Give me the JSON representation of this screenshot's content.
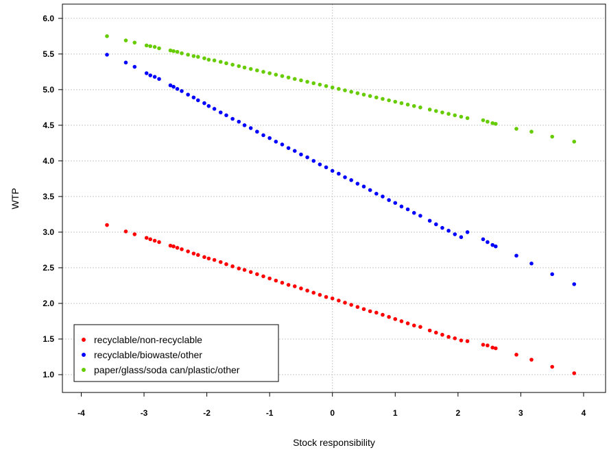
{
  "chart_data": {
    "type": "scatter",
    "xlabel": "Stock responsibility",
    "ylabel": "WTP",
    "xlim": [
      -4.3,
      4.35
    ],
    "ylim": [
      0.75,
      6.2
    ],
    "x_ticks": [
      -4,
      -3,
      -2,
      -1,
      0,
      1,
      2,
      3,
      4
    ],
    "x_tick_labels": [
      "-4",
      "-3",
      "-2",
      "-1",
      "0",
      "1",
      "2",
      "3",
      "4"
    ],
    "y_ticks": [
      1.0,
      1.5,
      2.0,
      2.5,
      3.0,
      3.5,
      4.0,
      4.5,
      5.0,
      5.5,
      6.0
    ],
    "y_tick_labels": [
      "1.0",
      "1.5",
      "2.0",
      "2.5",
      "3.0",
      "3.5",
      "4.0",
      "4.5",
      "5.0",
      "5.5",
      "6.0"
    ],
    "grid": true,
    "legend_position": "bottom-left",
    "x": [
      -3.59,
      -3.29,
      -3.15,
      -2.96,
      -2.9,
      -2.83,
      -2.76,
      -2.58,
      -2.53,
      -2.47,
      -2.4,
      -2.3,
      -2.21,
      -2.14,
      -2.04,
      -1.97,
      -1.88,
      -1.78,
      -1.69,
      -1.59,
      -1.49,
      -1.4,
      -1.3,
      -1.2,
      -1.1,
      -1.0,
      -0.9,
      -0.8,
      -0.7,
      -0.6,
      -0.5,
      -0.4,
      -0.3,
      -0.2,
      -0.1,
      0.0,
      0.1,
      0.2,
      0.3,
      0.4,
      0.5,
      0.6,
      0.7,
      0.8,
      0.9,
      1.0,
      1.1,
      1.2,
      1.3,
      1.4,
      1.55,
      1.65,
      1.75,
      1.85,
      1.95,
      2.05,
      2.15,
      2.4,
      2.47,
      2.55,
      2.6,
      2.93,
      3.17,
      3.5,
      3.85
    ],
    "series": [
      {
        "name": "recyclable/non-recyclable",
        "color": "#ff0000",
        "values": [
          3.1,
          3.01,
          2.97,
          2.92,
          2.9,
          2.88,
          2.86,
          2.81,
          2.8,
          2.78,
          2.76,
          2.73,
          2.7,
          2.68,
          2.65,
          2.63,
          2.61,
          2.58,
          2.55,
          2.52,
          2.49,
          2.47,
          2.44,
          2.41,
          2.38,
          2.35,
          2.32,
          2.29,
          2.26,
          2.24,
          2.21,
          2.18,
          2.15,
          2.12,
          2.09,
          2.07,
          2.04,
          2.01,
          1.98,
          1.95,
          1.92,
          1.89,
          1.87,
          1.84,
          1.81,
          1.78,
          1.75,
          1.72,
          1.69,
          1.67,
          1.62,
          1.59,
          1.56,
          1.53,
          1.51,
          1.48,
          1.47,
          1.42,
          1.41,
          1.38,
          1.37,
          1.28,
          1.21,
          1.11,
          1.02
        ]
      },
      {
        "name": "recyclable/biowaste/other",
        "color": "#0000ff",
        "values": [
          5.49,
          5.38,
          5.32,
          5.23,
          5.2,
          5.18,
          5.15,
          5.06,
          5.04,
          5.01,
          4.98,
          4.93,
          4.89,
          4.85,
          4.81,
          4.77,
          4.73,
          4.68,
          4.64,
          4.59,
          4.55,
          4.5,
          4.46,
          4.41,
          4.36,
          4.32,
          4.27,
          4.23,
          4.18,
          4.14,
          4.09,
          4.05,
          4.0,
          3.95,
          3.91,
          3.86,
          3.82,
          3.77,
          3.73,
          3.68,
          3.64,
          3.59,
          3.54,
          3.5,
          3.45,
          3.41,
          3.36,
          3.32,
          3.27,
          3.23,
          3.16,
          3.11,
          3.06,
          3.02,
          2.97,
          2.93,
          3.0,
          2.9,
          2.86,
          2.82,
          2.8,
          2.67,
          2.56,
          2.41,
          2.27
        ]
      },
      {
        "name": "paper/glass/soda can/plastic/other",
        "color": "#66cc00",
        "values": [
          5.75,
          5.69,
          5.66,
          5.62,
          5.61,
          5.6,
          5.58,
          5.55,
          5.54,
          5.53,
          5.51,
          5.49,
          5.47,
          5.46,
          5.44,
          5.42,
          5.41,
          5.39,
          5.37,
          5.35,
          5.33,
          5.31,
          5.29,
          5.27,
          5.25,
          5.23,
          5.21,
          5.19,
          5.17,
          5.15,
          5.13,
          5.11,
          5.09,
          5.07,
          5.05,
          5.03,
          5.01,
          4.99,
          4.97,
          4.95,
          4.93,
          4.91,
          4.89,
          4.87,
          4.85,
          4.83,
          4.81,
          4.79,
          4.77,
          4.75,
          4.72,
          4.7,
          4.68,
          4.66,
          4.64,
          4.62,
          4.6,
          4.57,
          4.55,
          4.53,
          4.52,
          4.45,
          4.41,
          4.34,
          4.27
        ]
      }
    ]
  }
}
